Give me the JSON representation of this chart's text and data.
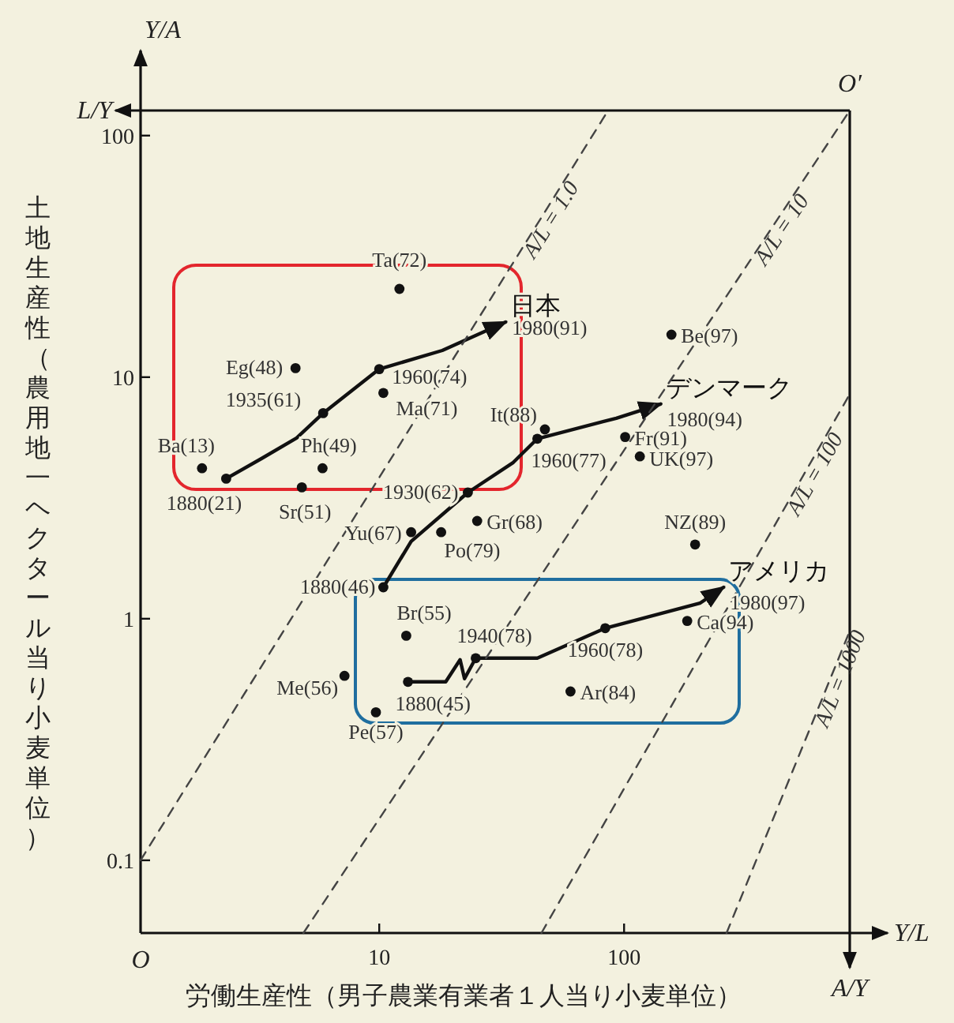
{
  "chart_data": {
    "type": "scatter",
    "log": "xy",
    "grid": false,
    "xlabel": "労働生産性（男子農業有業者１人当り小麦単位）",
    "ylabel": "土地生産性（農用地一ヘクタール当り小麦単位）",
    "xlim": [
      1.06,
      835
    ],
    "ylim": [
      0.05,
      127
    ],
    "xticks": [
      10,
      100
    ],
    "yticks": [
      0.1,
      1,
      10,
      100
    ],
    "series": [
      {
        "type": "scatter",
        "color": "#111111",
        "x": [
          12.1,
          4.55,
          10.4,
          1.89,
          5.87,
          4.83,
          156,
          101,
          116,
          25.1,
          13.5,
          17.9,
          195,
          181,
          60.4,
          12.9,
          7.21,
          9.7,
          47.5,
          2.37,
          5.9,
          10,
          10.4,
          23,
          44.2,
          13.1,
          24.8,
          83.8
        ],
        "values": [
          23.2,
          10.9,
          8.6,
          4.2,
          4.2,
          3.5,
          15,
          5.65,
          4.7,
          2.54,
          2.28,
          2.28,
          2.03,
          0.98,
          0.5,
          0.85,
          0.58,
          0.41,
          6.08,
          3.8,
          7.1,
          10.8,
          1.35,
          3.33,
          5.56,
          0.548,
          0.687,
          0.914
        ]
      },
      {
        "type": "line",
        "name": "日本",
        "color": "#111111",
        "line_style": "solid",
        "x": [
          2.37,
          3.3,
          4.6,
          5.9,
          10,
          18.1,
          32.8
        ],
        "values": [
          3.8,
          4.6,
          5.6,
          7.1,
          10.8,
          12.9,
          16.9
        ]
      },
      {
        "type": "line",
        "name": "デンマーク",
        "color": "#111111",
        "line_style": "solid",
        "x": [
          10.4,
          13.5,
          23,
          35.3,
          44.2,
          92.9,
          141
        ],
        "values": [
          1.35,
          2.09,
          3.33,
          4.44,
          5.56,
          6.76,
          7.74
        ]
      },
      {
        "type": "line",
        "name": "アメリカ",
        "color": "#111111",
        "line_style": "solid",
        "x": [
          13.1,
          18.7,
          21.4,
          22.3,
          24.8,
          44.2,
          83.8,
          204,
          255
        ],
        "values": [
          0.548,
          0.548,
          0.676,
          0.565,
          0.687,
          0.687,
          0.914,
          1.16,
          1.35
        ]
      },
      {
        "type": "line",
        "name": "A/L = 1.0",
        "color": "#444444",
        "line_style": "dashed",
        "x": [
          1.06,
          86
        ],
        "values": [
          0.1,
          127
        ]
      },
      {
        "type": "line",
        "name": "A/L = 10",
        "color": "#444444",
        "line_style": "dashed",
        "x": [
          4.9,
          835
        ],
        "values": [
          0.05,
          127
        ]
      },
      {
        "type": "line",
        "name": "A/L = 100",
        "color": "#444444",
        "line_style": "dashed",
        "x": [
          46,
          835
        ],
        "values": [
          0.05,
          8.5
        ]
      },
      {
        "type": "line",
        "name": "A/L = 1000",
        "color": "#444444",
        "line_style": "dashed",
        "x": [
          262,
          835
        ],
        "values": [
          0.05,
          0.89
        ]
      }
    ],
    "annotations": [
      "Y/A",
      "L/Y",
      "O′",
      "O",
      "Y/L",
      "A/Y",
      {
        "text": "Ta(72)",
        "x": 12.1,
        "y": 23.2
      },
      {
        "text": "Eg(48)",
        "x": 4.55,
        "y": 10.9
      },
      {
        "text": "1935(61)",
        "x": 5.9,
        "y": 7.1
      },
      {
        "text": "1960(74)",
        "x": 10,
        "y": 10.8
      },
      {
        "text": "Ma(71)",
        "x": 10.4,
        "y": 8.6
      },
      {
        "text": "Ba(13)",
        "x": 1.89,
        "y": 4.2
      },
      {
        "text": "1880(21)",
        "x": 2.37,
        "y": 3.8
      },
      {
        "text": "Ph(49)",
        "x": 5.87,
        "y": 4.2
      },
      {
        "text": "Sr(51)",
        "x": 4.83,
        "y": 3.5
      },
      {
        "text": "1980(91)",
        "x": 32.8,
        "y": 16.9
      },
      {
        "text": "Be(97)",
        "x": 156,
        "y": 15
      },
      {
        "text": "Fr(91)",
        "x": 101,
        "y": 5.65
      },
      {
        "text": "UK(97)",
        "x": 116,
        "y": 4.7
      },
      {
        "text": "It(88)",
        "x": 47.5,
        "y": 6.08
      },
      {
        "text": "1960(77)",
        "x": 44.2,
        "y": 5.56
      },
      {
        "text": "1980(94)",
        "x": 141,
        "y": 7.74
      },
      {
        "text": "1930(62)",
        "x": 23,
        "y": 3.33
      },
      {
        "text": "Gr(68)",
        "x": 25.1,
        "y": 2.54
      },
      {
        "text": "Yu(67)",
        "x": 13.5,
        "y": 2.28
      },
      {
        "text": "Po(79)",
        "x": 17.9,
        "y": 2.28
      },
      {
        "text": "1880(46)",
        "x": 10.4,
        "y": 1.35
      },
      {
        "text": "NZ(89)",
        "x": 195,
        "y": 2.03
      },
      {
        "text": "1980(97)",
        "x": 255,
        "y": 1.35
      },
      {
        "text": "Ca(94)",
        "x": 181,
        "y": 0.98
      },
      {
        "text": "Br(55)",
        "x": 12.9,
        "y": 0.85
      },
      {
        "text": "1940(78)",
        "x": 24.8,
        "y": 0.687
      },
      {
        "text": "1960(78)",
        "x": 83.8,
        "y": 0.914
      },
      {
        "text": "Ar(84)",
        "x": 60.4,
        "y": 0.5
      },
      {
        "text": "1880(45)",
        "x": 13.1,
        "y": 0.548
      },
      {
        "text": "Me(56)",
        "x": 7.21,
        "y": 0.58
      },
      {
        "text": "Pe(57)",
        "x": 9.7,
        "y": 0.41
      }
    ]
  }
}
